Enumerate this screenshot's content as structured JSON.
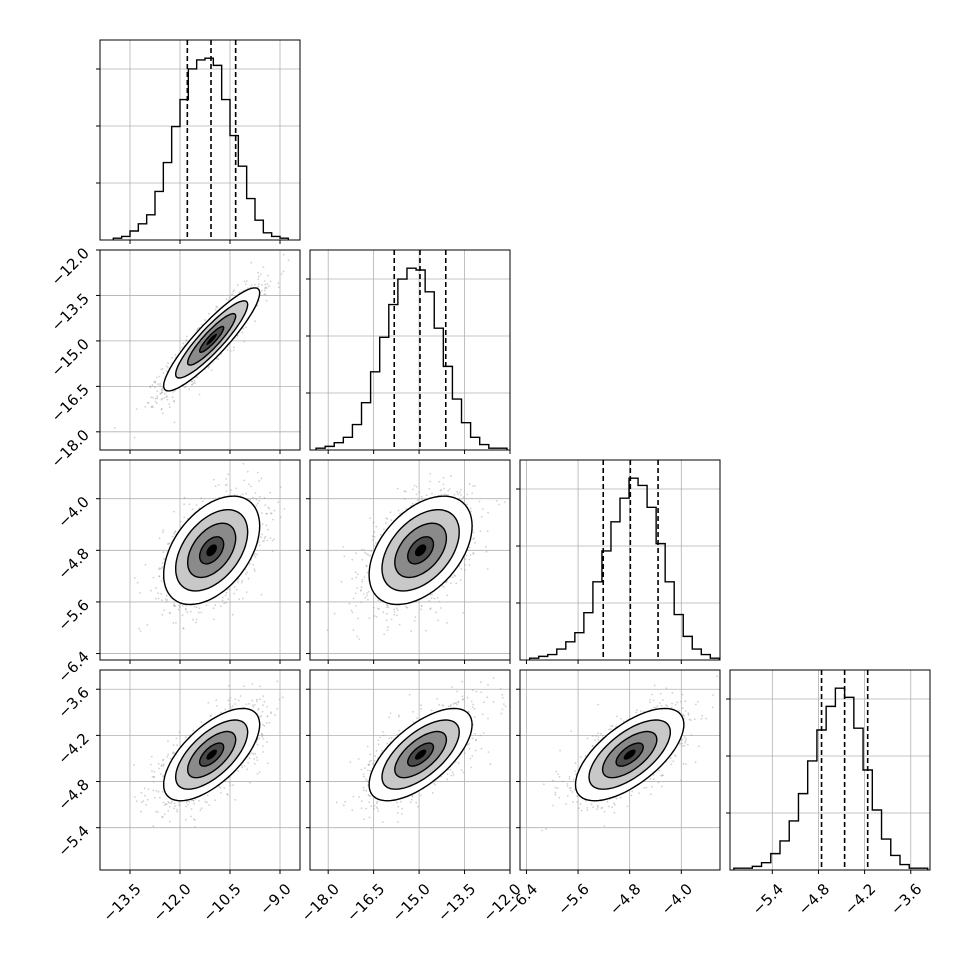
{
  "chart_data": {
    "type": "corner",
    "parameters": [
      "",
      "",
      "",
      ""
    ],
    "ranges": [
      [
        -14.4,
        -8.4
      ],
      [
        -18.6,
        -12.0
      ],
      [
        -6.5,
        -3.4
      ],
      [
        -5.95,
        -3.35
      ]
    ],
    "ticks": [
      {
        "values": [
          -13.5,
          -12.0,
          -10.5,
          -9.0
        ],
        "labels": [
          "−13.5",
          "−12.0",
          "−10.5",
          "−9.0"
        ]
      },
      {
        "values": [
          -18.0,
          -16.5,
          -15.0,
          -13.5,
          -12.0
        ],
        "labels": [
          "−18.0",
          "−16.5",
          "−15.0",
          "−13.5",
          "−12.0"
        ]
      },
      {
        "values": [
          -6.4,
          -5.6,
          -4.8,
          -4.0
        ],
        "labels": [
          "−6.4",
          "−5.6",
          "−4.8",
          "−4.0"
        ]
      },
      {
        "values": [
          -5.4,
          -4.8,
          -4.2,
          -3.6
        ],
        "labels": [
          "−5.4",
          "−4.8",
          "−4.2",
          "−3.6"
        ]
      }
    ],
    "quantiles": [
      [
        -11.78,
        -11.07,
        -10.33
      ],
      [
        -15.82,
        -14.97,
        -14.12
      ],
      [
        -5.21,
        -4.79,
        -4.36
      ],
      [
        -4.76,
        -4.46,
        -4.16
      ]
    ],
    "histograms": [
      {
        "edges_start": -14.0,
        "bin_width": 0.25,
        "counts": [
          1,
          2,
          5,
          9,
          14,
          27,
          43,
          63,
          78,
          95,
          100,
          101,
          97,
          78,
          58,
          41,
          23,
          11,
          4,
          2,
          1
        ]
      },
      {
        "edges_start": -18.4,
        "bin_width": 0.3,
        "counts": [
          1,
          2,
          4,
          7,
          14,
          26,
          43,
          62,
          80,
          94,
          100,
          99,
          87,
          67,
          46,
          28,
          15,
          7,
          3,
          1,
          1
        ]
      },
      {
        "edges_start": -6.35,
        "bin_width": 0.14,
        "counts": [
          1,
          2,
          3,
          6,
          10,
          15,
          26,
          43,
          60,
          76,
          89,
          100,
          96,
          84,
          64,
          43,
          25,
          13,
          6,
          3,
          1
        ]
      },
      {
        "edges_start": -5.9,
        "bin_width": 0.12,
        "counts": [
          1,
          1,
          2,
          4,
          9,
          16,
          27,
          42,
          60,
          77,
          90,
          100,
          95,
          78,
          55,
          33,
          17,
          8,
          3,
          1,
          1
        ]
      }
    ],
    "joint": [
      {
        "i": 1,
        "j": 0,
        "mean": [
          -11.05,
          -14.95
        ],
        "sd": [
          0.72,
          0.85
        ],
        "corr": 0.9
      },
      {
        "i": 2,
        "j": 0,
        "mean": [
          -11.05,
          -4.8
        ],
        "sd": [
          0.72,
          0.42
        ],
        "corr": 0.45
      },
      {
        "i": 2,
        "j": 1,
        "mean": [
          -14.95,
          -4.8
        ],
        "sd": [
          0.85,
          0.42
        ],
        "corr": 0.45
      },
      {
        "i": 3,
        "j": 0,
        "mean": [
          -11.05,
          -4.45
        ],
        "sd": [
          0.72,
          0.3
        ],
        "corr": 0.65
      },
      {
        "i": 3,
        "j": 1,
        "mean": [
          -14.95,
          -4.45
        ],
        "sd": [
          0.85,
          0.3
        ],
        "corr": 0.65
      },
      {
        "i": 3,
        "j": 2,
        "mean": [
          -4.8,
          -4.45
        ],
        "sd": [
          0.42,
          0.3
        ],
        "corr": 0.65
      }
    ],
    "contour_levels_sigma": [
      0.5,
      1.0,
      1.5,
      2.0
    ],
    "grid": true,
    "colors": {
      "line": "#000000",
      "points": "#9a9a9a",
      "grid": "#b0b0b0"
    }
  }
}
